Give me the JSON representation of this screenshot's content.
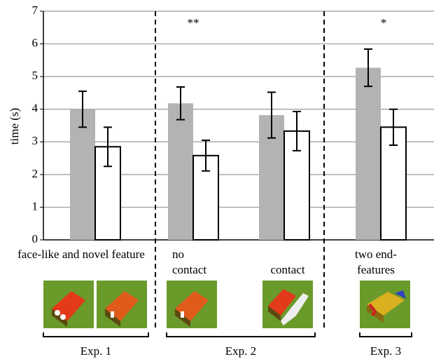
{
  "chart_data": {
    "type": "bar",
    "y_label": "time (s)",
    "categories": [
      "face-like and novel feature",
      "no contact",
      "contact",
      "two end-features"
    ],
    "series": [
      {
        "color": "#b3b3b3",
        "values": [
          4.0,
          4.18,
          3.82,
          5.27
        ],
        "errors": [
          0.55,
          0.5,
          0.7,
          0.57
        ]
      },
      {
        "color": "#ffffff",
        "values": [
          2.85,
          2.58,
          3.33,
          3.45
        ],
        "errors": [
          0.6,
          0.47,
          0.6,
          0.55
        ]
      }
    ],
    "annotations": [
      "**",
      "*"
    ],
    "experiments": [
      "Exp. 1",
      "Exp. 2",
      "Exp. 3"
    ],
    "ylim": [
      0,
      7
    ],
    "yticks": [
      0,
      1,
      2,
      3,
      4,
      5,
      6,
      7
    ],
    "grid": true
  }
}
